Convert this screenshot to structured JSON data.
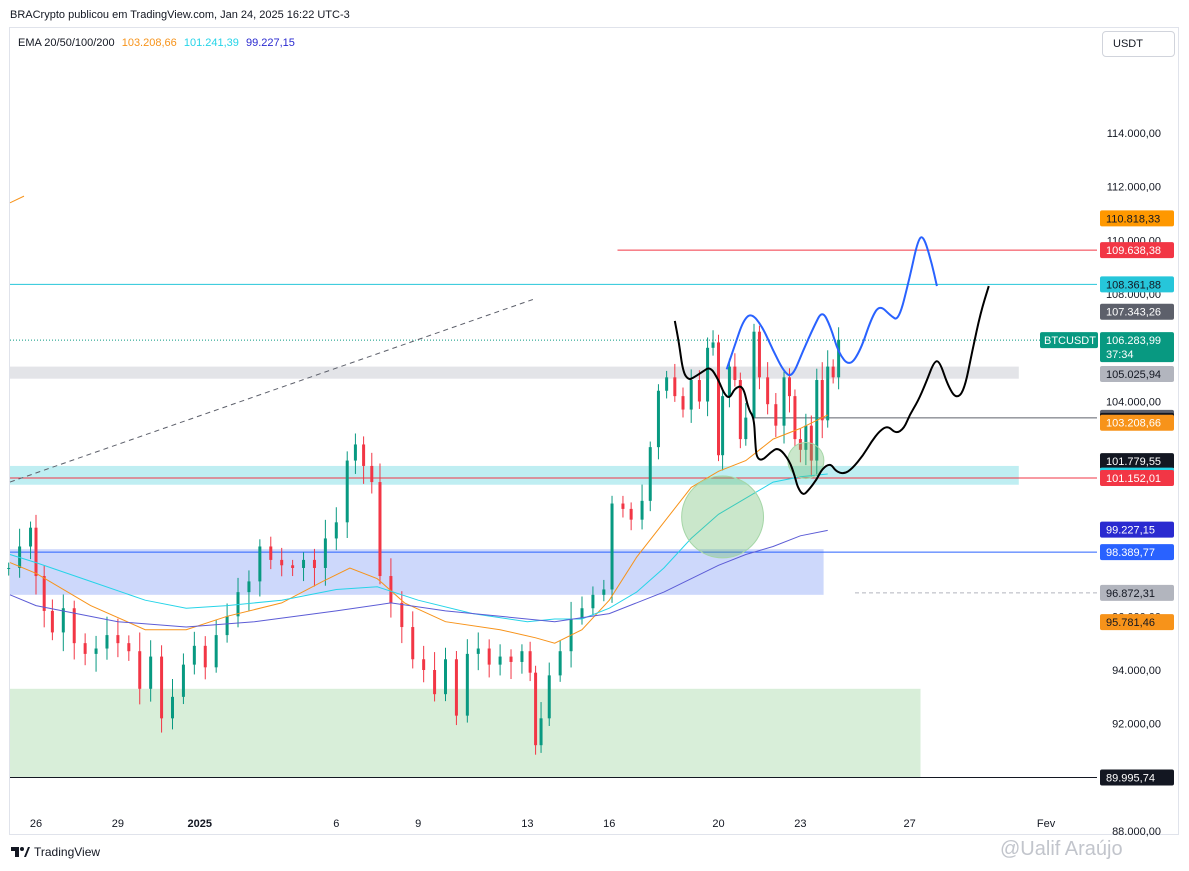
{
  "header": {
    "title": "BRACrypto publicou em TradingView.com, Jan 24, 2025 16:22 UTC-3"
  },
  "indicator": {
    "label": "EMA 20/50/100/200",
    "values": [
      {
        "text": "103.208,66",
        "color": "#f7931a"
      },
      {
        "text": "101.241,39",
        "color": "#26d4e8"
      },
      {
        "text": "99.227,15",
        "color": "#2a2ad0"
      }
    ]
  },
  "currency": "USDT",
  "footer": {
    "brand": "TradingView",
    "watermark": "@Ualif Araújo"
  },
  "chart_data": {
    "type": "candlestick",
    "symbol": "BTCUSDT",
    "interval_note": "hourly candles, Dec 25 2024 – Jan 24 2025",
    "ylim": [
      87000,
      115800
    ],
    "y_ticks": [
      {
        "value": 114000,
        "label": "114.000,00"
      },
      {
        "value": 112000,
        "label": "112.000,00"
      },
      {
        "value": 110000,
        "label": "110.000,00"
      },
      {
        "value": 108000,
        "label": "108.000,00"
      },
      {
        "value": 104000,
        "label": "104.000,00"
      },
      {
        "value": 96000,
        "label": "96.000,00"
      },
      {
        "value": 94000,
        "label": "94.000,00"
      },
      {
        "value": 92000,
        "label": "92.000,00"
      },
      {
        "value": 88000,
        "label": "88.000,00"
      }
    ],
    "x_ticks": [
      {
        "day": 0,
        "label": "26"
      },
      {
        "day": 3,
        "label": "29"
      },
      {
        "day": 6,
        "label": "2025",
        "bold": true
      },
      {
        "day": 11,
        "label": "6"
      },
      {
        "day": 14,
        "label": "9"
      },
      {
        "day": 18,
        "label": "13"
      },
      {
        "day": 21,
        "label": "16"
      },
      {
        "day": 25,
        "label": "20"
      },
      {
        "day": 28,
        "label": "23"
      },
      {
        "day": 32,
        "label": "27"
      },
      {
        "day": 37,
        "label": "Fev"
      }
    ],
    "price_tags": [
      {
        "value": 110818.33,
        "label": "110.818,33",
        "bg": "#ff9800",
        "fg": "#131722"
      },
      {
        "value": 109638.38,
        "label": "109.638,38",
        "bg": "#f23645",
        "fg": "#ffffff"
      },
      {
        "value": 108361.88,
        "label": "108.361,88",
        "bg": "#26c6da",
        "fg": "#131722"
      },
      {
        "value": 107343.26,
        "label": "107.343,26",
        "bg": "#5d606b",
        "fg": "#ffffff"
      },
      {
        "value": 106283.99,
        "label": "106.283,99",
        "sub": "37:34",
        "bg": "#089981",
        "fg": "#ffffff"
      },
      {
        "value": 105025.94,
        "label": "105.025,94",
        "bg": "#b2b5be",
        "fg": "#131722"
      },
      {
        "value": 103390.86,
        "label": "103.390,86",
        "bg": "#5d606b",
        "fg": "#ffffff"
      },
      {
        "value": 103277.53,
        "label": "103.277,53",
        "bg": "#131722",
        "fg": "#ffffff"
      },
      {
        "value": 103208.66,
        "label": "103.208,66",
        "bg": "#f7931a",
        "fg": "#ffffff"
      },
      {
        "value": 101779.55,
        "label": "101.779,55",
        "bg": "#131722",
        "fg": "#ffffff"
      },
      {
        "value": 101241.39,
        "label": "101.241,39",
        "bg": "#26d4e8",
        "fg": "#131722"
      },
      {
        "value": 101152.01,
        "label": "101.152,01",
        "bg": "#f23645",
        "fg": "#ffffff"
      },
      {
        "value": 99227.15,
        "label": "99.227,15",
        "bg": "#2a2ad0",
        "fg": "#ffffff"
      },
      {
        "value": 98389.77,
        "label": "98.389,77",
        "bg": "#2962ff",
        "fg": "#ffffff"
      },
      {
        "value": 96872.31,
        "label": "96.872,31",
        "bg": "#b2b5be",
        "fg": "#131722"
      },
      {
        "value": 95781.46,
        "label": "95.781,46",
        "bg": "#f7931a",
        "fg": "#131722"
      },
      {
        "value": 89995.74,
        "label": "89.995,74",
        "bg": "#131722",
        "fg": "#ffffff"
      }
    ],
    "symbol_tag": {
      "label": "BTCUSDT",
      "bg": "#089981",
      "fg": "#ffffff"
    },
    "horizontal_lines": [
      {
        "value": 108361.88,
        "color": "#26c6da",
        "style": "solid",
        "from_day": -1.5
      },
      {
        "value": 109638.38,
        "color": "#f23645",
        "style": "solid",
        "from_day": 21.3
      },
      {
        "value": 106283.99,
        "color": "#089981",
        "style": "dotted",
        "from_day": -1.5
      },
      {
        "value": 103390.86,
        "color": "#5d606b",
        "style": "solid",
        "from_day": 26.3
      },
      {
        "value": 101152.01,
        "color": "#f23645",
        "style": "solid",
        "from_day": -1.5
      },
      {
        "value": 98389.77,
        "color": "#2962ff",
        "style": "solid",
        "from_day": -1.5
      },
      {
        "value": 96872.31,
        "color": "#b2b5be",
        "style": "dashed",
        "from_day": 30
      },
      {
        "value": 89995.74,
        "color": "#131722",
        "style": "solid",
        "from_day": -1.5
      }
    ],
    "zones": [
      {
        "from_day": -1.5,
        "to_day": 36,
        "y1": 105300,
        "y2": 104850,
        "color": "#e3e4e8"
      },
      {
        "from_day": -1.5,
        "to_day": 36,
        "y1": 101600,
        "y2": 100900,
        "color": "#bfeef2"
      },
      {
        "from_day": -1.5,
        "to_day": 28.85,
        "y1": 98500,
        "y2": 96800,
        "color": "#cdd8fb"
      },
      {
        "from_day": -1.5,
        "to_day": 32.4,
        "y1": 93300,
        "y2": 90000,
        "color": "#d8eed9"
      }
    ],
    "ema_series": [
      {
        "name": "EMA 20",
        "color": "#f7931a",
        "points": [
          [
            -1.5,
            98000
          ],
          [
            0,
            97600
          ],
          [
            2,
            96400
          ],
          [
            4,
            95500
          ],
          [
            5.5,
            95500
          ],
          [
            7,
            96000
          ],
          [
            9,
            96500
          ],
          [
            10.5,
            97300
          ],
          [
            11.5,
            97800
          ],
          [
            12.5,
            97400
          ],
          [
            13.5,
            96500
          ],
          [
            15,
            95800
          ],
          [
            17,
            95500
          ],
          [
            18.3,
            95200
          ],
          [
            19,
            95000
          ],
          [
            20,
            95500
          ],
          [
            21,
            96600
          ],
          [
            22,
            98200
          ],
          [
            23,
            99500
          ],
          [
            24,
            100800
          ],
          [
            25,
            101400
          ],
          [
            26,
            101800
          ],
          [
            27,
            102600
          ],
          [
            28,
            103000
          ],
          [
            29,
            103500
          ]
        ]
      },
      {
        "name": "EMA 50",
        "color": "#26d4e8",
        "points": [
          [
            -1.5,
            98300
          ],
          [
            0,
            98000
          ],
          [
            2,
            97300
          ],
          [
            4,
            96600
          ],
          [
            5.5,
            96300
          ],
          [
            7,
            96400
          ],
          [
            9,
            96600
          ],
          [
            11,
            97000
          ],
          [
            12.5,
            97100
          ],
          [
            14,
            96600
          ],
          [
            16,
            96100
          ],
          [
            18,
            95800
          ],
          [
            19,
            95900
          ],
          [
            20,
            95900
          ],
          [
            21,
            96300
          ],
          [
            22,
            96900
          ],
          [
            23,
            97800
          ],
          [
            24,
            98900
          ],
          [
            25,
            99800
          ],
          [
            26,
            100400
          ],
          [
            27,
            101000
          ],
          [
            28,
            101200
          ],
          [
            29,
            101300
          ]
        ]
      },
      {
        "name": "EMA 100",
        "color": "#5c5cd6",
        "points": [
          [
            -1.5,
            96800
          ],
          [
            0,
            96400
          ],
          [
            3,
            95800
          ],
          [
            5.5,
            95600
          ],
          [
            8,
            95800
          ],
          [
            11,
            96200
          ],
          [
            13,
            96500
          ],
          [
            15,
            96200
          ],
          [
            17,
            96000
          ],
          [
            19,
            95800
          ],
          [
            21,
            96100
          ],
          [
            23,
            96900
          ],
          [
            25,
            97900
          ],
          [
            26,
            98300
          ],
          [
            27,
            98600
          ],
          [
            28,
            99000
          ],
          [
            29,
            99200
          ]
        ]
      }
    ],
    "candles": [],
    "drawings": {
      "trendline_dashed": {
        "from": [
          -1.5,
          101000
        ],
        "to": [
          18.2,
          107800
        ],
        "color": "#5d606b"
      },
      "small_orange": {
        "from": [
          -1.5,
          111400
        ],
        "to": [
          -1.2,
          111500
        ],
        "color": "#f7931a"
      },
      "blue_path": {
        "color": "#2962ff",
        "points": [
          [
            25.3,
            105200
          ],
          [
            25.6,
            106100
          ],
          [
            25.9,
            107000
          ],
          [
            26.2,
            107300
          ],
          [
            26.6,
            106800
          ],
          [
            27,
            105900
          ],
          [
            27.4,
            105100
          ],
          [
            27.7,
            104900
          ],
          [
            28.1,
            105900
          ],
          [
            28.5,
            106800
          ],
          [
            28.8,
            107400
          ],
          [
            29.1,
            106800
          ],
          [
            29.4,
            105800
          ],
          [
            29.8,
            105300
          ],
          [
            30.2,
            105900
          ],
          [
            30.6,
            107100
          ],
          [
            30.9,
            107600
          ],
          [
            31.3,
            107200
          ],
          [
            31.6,
            107000
          ],
          [
            32,
            108600
          ],
          [
            32.3,
            110000
          ],
          [
            32.5,
            110200
          ],
          [
            32.8,
            109200
          ],
          [
            33,
            108300
          ]
        ]
      },
      "black_path": {
        "color": "#000000",
        "points": [
          [
            23.4,
            107000
          ],
          [
            23.55,
            106200
          ],
          [
            23.7,
            105100
          ],
          [
            23.9,
            104800
          ],
          [
            24.1,
            104900
          ],
          [
            24.4,
            105100
          ],
          [
            24.7,
            105300
          ],
          [
            25.0,
            104800
          ],
          [
            25.2,
            104300
          ],
          [
            25.4,
            104100
          ],
          [
            25.6,
            104500
          ],
          [
            25.9,
            104600
          ],
          [
            26.1,
            103700
          ],
          [
            26.3,
            103400
          ],
          [
            26.35,
            102400
          ],
          [
            26.4,
            101900
          ],
          [
            26.6,
            101800
          ],
          [
            26.9,
            102100
          ],
          [
            27.2,
            102300
          ],
          [
            27.6,
            101800
          ],
          [
            27.8,
            101200
          ],
          [
            27.9,
            100800
          ],
          [
            28.1,
            100500
          ],
          [
            28.3,
            100700
          ],
          [
            28.6,
            101100
          ],
          [
            28.8,
            101500
          ],
          [
            29.1,
            101700
          ],
          [
            29.3,
            101400
          ],
          [
            29.6,
            101300
          ],
          [
            29.9,
            101500
          ],
          [
            30.3,
            102000
          ],
          [
            30.6,
            102500
          ],
          [
            30.9,
            102900
          ],
          [
            31.2,
            103100
          ],
          [
            31.5,
            102800
          ],
          [
            31.8,
            103000
          ],
          [
            32.0,
            103500
          ],
          [
            32.3,
            104000
          ],
          [
            32.6,
            104700
          ],
          [
            32.9,
            105500
          ],
          [
            33.1,
            105500
          ],
          [
            33.4,
            104600
          ],
          [
            33.7,
            104100
          ],
          [
            34.0,
            104400
          ],
          [
            34.3,
            105900
          ],
          [
            34.6,
            107300
          ],
          [
            34.9,
            108300
          ]
        ]
      },
      "circles": [
        {
          "center": [
            25.15,
            99700
          ],
          "radius_days": 0.75,
          "color": "rgba(102,187,106,0.35)",
          "stroke": "#a5d6a7"
        },
        {
          "center": [
            28.2,
            101800
          ],
          "radius_days": 0.33,
          "color": "rgba(102,187,106,0.35)",
          "stroke": "#a5d6a7"
        }
      ]
    }
  }
}
